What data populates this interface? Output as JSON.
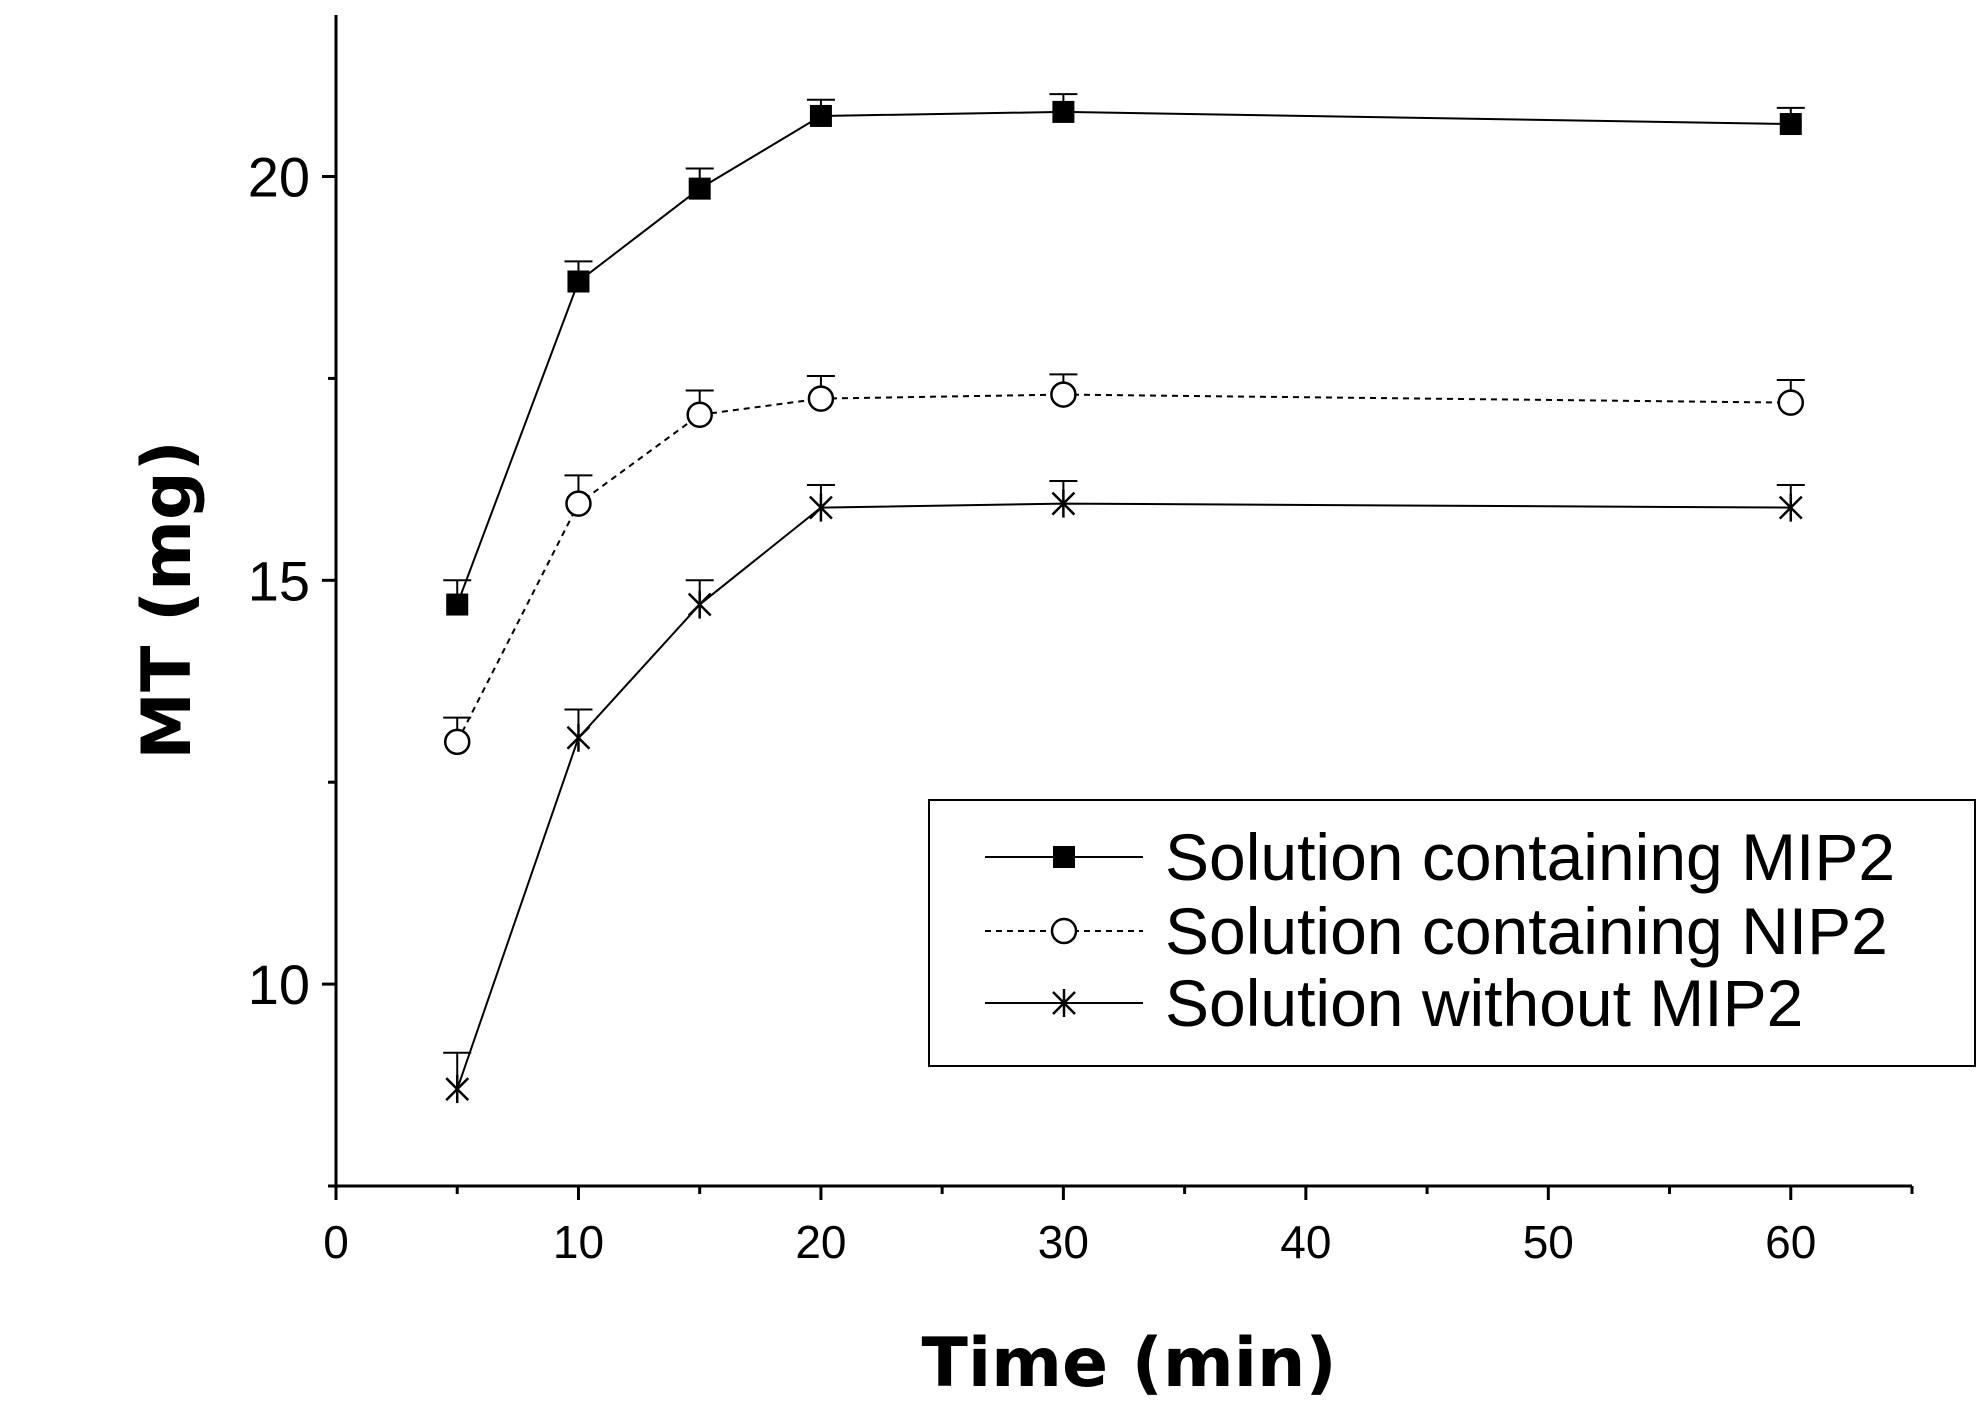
{
  "chart_data": {
    "type": "line",
    "title": "",
    "xlabel": "Time (min)",
    "ylabel": "MT (mg)",
    "xlim": [
      0,
      65
    ],
    "ylim": [
      7.5,
      22
    ],
    "x_ticks": [
      0,
      10,
      20,
      30,
      40,
      50,
      60
    ],
    "y_ticks": [
      10,
      15,
      20
    ],
    "x_tick_labels": [
      "0",
      "10",
      "20",
      "30",
      "40",
      "50",
      "60"
    ],
    "y_tick_labels": [
      "10",
      "15",
      "20"
    ],
    "grid": false,
    "legend_position": "lower-right",
    "x": [
      5,
      10,
      15,
      20,
      30,
      60
    ],
    "series": [
      {
        "name": "Solution containing MIP2",
        "marker": "filled-square",
        "line_style": "solid",
        "values": [
          14.7,
          18.7,
          19.85,
          20.75,
          20.8,
          20.65
        ],
        "errors": [
          0.3,
          0.25,
          0.25,
          0.2,
          0.22,
          0.2
        ]
      },
      {
        "name": "Solution containing NIP2",
        "marker": "open-circle",
        "line_style": "dashed",
        "values": [
          13.0,
          15.95,
          17.05,
          17.25,
          17.3,
          17.2
        ],
        "errors": [
          0.3,
          0.35,
          0.3,
          0.28,
          0.25,
          0.28
        ]
      },
      {
        "name": "Solution without MIP2",
        "marker": "asterisk",
        "line_style": "solid",
        "values": [
          8.7,
          13.05,
          14.7,
          15.9,
          15.95,
          15.9
        ],
        "errors": [
          0.45,
          0.35,
          0.3,
          0.28,
          0.28,
          0.28
        ]
      }
    ]
  }
}
